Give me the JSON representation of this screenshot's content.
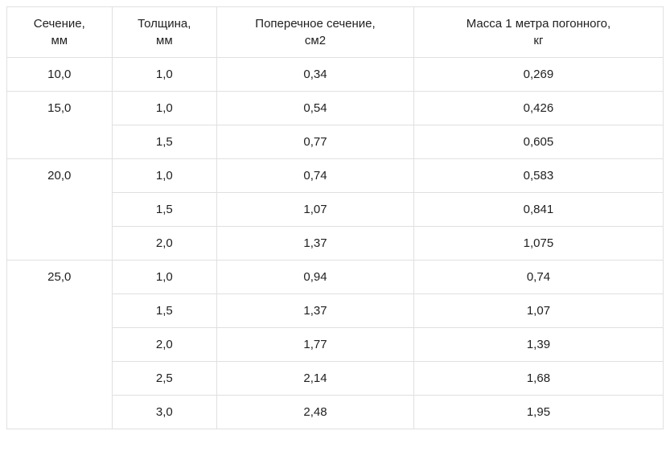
{
  "table": {
    "type": "table",
    "columns": [
      {
        "label_line1": "Сечение,",
        "label_line2": "мм",
        "width_pct": 16,
        "align": "center"
      },
      {
        "label_line1": "Толщина,",
        "label_line2": "мм",
        "width_pct": 16,
        "align": "center"
      },
      {
        "label_line1": "Поперечное сечение,",
        "label_line2": "см2",
        "width_pct": 30,
        "align": "center"
      },
      {
        "label_line1": "Масса 1 метра погонного,",
        "label_line2": "кг",
        "width_pct": 38,
        "align": "center"
      }
    ],
    "groups": [
      {
        "section": "10,0",
        "rows": [
          {
            "thickness": "1,0",
            "cross": "0,34",
            "mass": "0,269"
          }
        ]
      },
      {
        "section": "15,0",
        "rows": [
          {
            "thickness": "1,0",
            "cross": "0,54",
            "mass": "0,426"
          },
          {
            "thickness": "1,5",
            "cross": "0,77",
            "mass": "0,605"
          }
        ]
      },
      {
        "section": "20,0",
        "rows": [
          {
            "thickness": "1,0",
            "cross": "0,74",
            "mass": "0,583"
          },
          {
            "thickness": "1,5",
            "cross": "1,07",
            "mass": "0,841"
          },
          {
            "thickness": "2,0",
            "cross": "1,37",
            "mass": "1,075"
          }
        ]
      },
      {
        "section": "25,0",
        "rows": [
          {
            "thickness": "1,0",
            "cross": "0,94",
            "mass": "0,74"
          },
          {
            "thickness": "1,5",
            "cross": "1,37",
            "mass": "1,07"
          },
          {
            "thickness": "2,0",
            "cross": "1,77",
            "mass": "1,39"
          },
          {
            "thickness": "2,5",
            "cross": "2,14",
            "mass": "1,68"
          },
          {
            "thickness": "3,0",
            "cross": "2,48",
            "mass": "1,95"
          }
        ]
      }
    ],
    "border_color": "#e0e0e0",
    "background_color": "#ffffff",
    "text_color": "#212121",
    "font_size": 15,
    "header_font_size": 15,
    "cell_padding": 12
  }
}
